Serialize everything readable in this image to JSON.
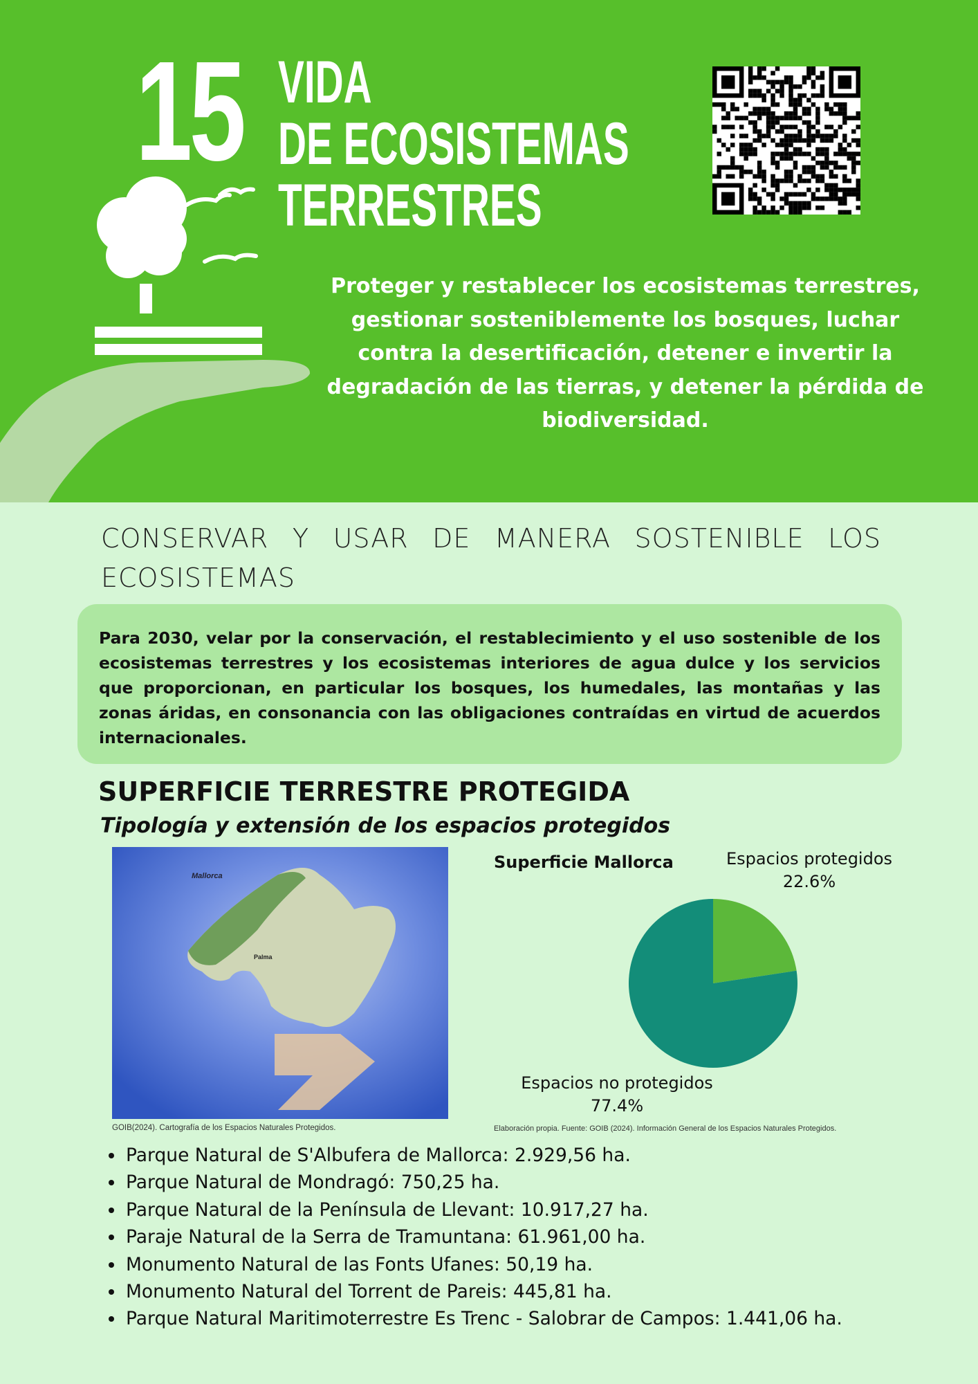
{
  "header": {
    "goal_number": "15",
    "title_lines": [
      "VIDA",
      "DE ECOSISTEMAS",
      "TERRESTRES"
    ],
    "description": "Proteger y restablecer los ecosistemas terrestres, gestionar sosteniblemente los bosques, luchar contra la desertificación, detener e invertir la degradación de las tierras, y detener la pérdida de biodiversidad.",
    "icon": "tree-birds-hand-icon",
    "qr": "qr-code-icon",
    "color": "#57bf2b"
  },
  "target": {
    "heading": "CONSERVAR Y USAR DE MANERA SOSTENIBLE LOS ECOSISTEMAS",
    "text": "Para 2030, velar por la conservación, el restablecimiento y el uso sostenible de los ecosistemas terrestres y los ecosistemas interiores de agua dulce y los servicios que proporcionan, en particular los bosques, los humedales, las montañas y las zonas áridas, en consonancia con las obligaciones contraídas en virtud de acuerdos internacionales."
  },
  "section": {
    "title": "SUPERFICIE TERRESTRE PROTEGIDA",
    "subtitle": "Tipología y extensión de los espacios protegidos",
    "map_caption": "GOIB(2024). Cartografía de los Espacios Naturales Protegidos.",
    "map_labels": {
      "island": "Mallorca",
      "city": "Palma"
    },
    "chart_caption": "Elaboración propia. Fuente: GOIB (2024).  Información General de los Espacios Naturales Protegidos."
  },
  "chart_data": {
    "type": "pie",
    "title": "Superficie Mallorca",
    "slices": [
      {
        "name": "Espacios protegidos",
        "value": 22.6,
        "label": "22.6%",
        "color": "#5cb83a"
      },
      {
        "name": "Espacios no protegidos",
        "value": 77.4,
        "label": "77.4%",
        "color": "#138d79"
      }
    ]
  },
  "bullets": [
    "Parque Natural de S'Albufera de Mallorca: 2.929,56 ha.",
    "Parque Natural de Mondragó: 750,25 ha.",
    "Parque Natural de la Península de Llevant: 10.917,27 ha.",
    "Paraje Natural de la Serra de Tramuntana: 61.961,00 ha.",
    "Monumento Natural de las Fonts Ufanes: 50,19 ha.",
    "Monumento Natural del Torrent de Pareis: 445,81 ha.",
    "Parque Natural Maritimoterrestre Es Trenc - Salobrar de Campos: 1.441,06 ha."
  ]
}
